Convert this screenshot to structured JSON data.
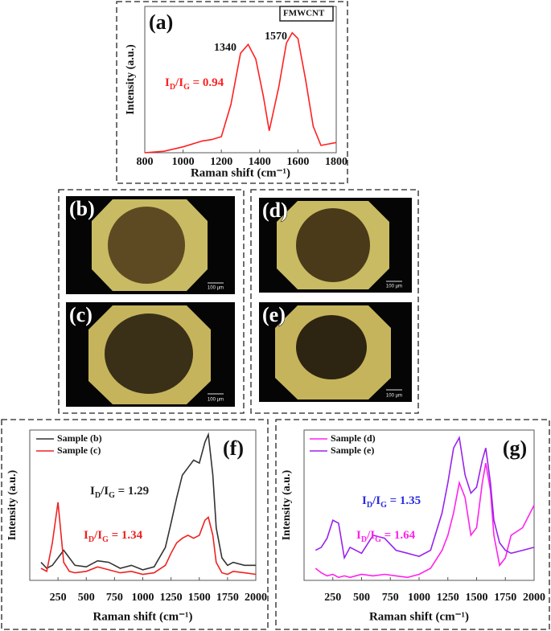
{
  "chart_data": [
    {
      "type": "line",
      "panel_label": "(a)",
      "x_label": "Raman shift (cm⁻¹)",
      "y_label": "Intensity (a.u.)",
      "x": [
        800,
        900,
        1000,
        1100,
        1150,
        1200,
        1250,
        1300,
        1340,
        1380,
        1420,
        1450,
        1500,
        1540,
        1570,
        1600,
        1640,
        1680,
        1720,
        1760,
        1800
      ],
      "series": [
        {
          "name": "FMWCNT",
          "color": "#ff2020",
          "values": [
            0,
            1,
            4,
            8,
            9,
            11,
            33,
            68,
            74,
            64,
            38,
            15,
            45,
            75,
            82,
            78,
            50,
            18,
            5,
            6,
            7
          ]
        }
      ],
      "xlim": [
        800,
        1800
      ],
      "xticks": [
        800,
        1000,
        1200,
        1400,
        1600,
        1800
      ],
      "ylim": [
        0,
        100
      ],
      "peak_labels": [
        1340,
        1570
      ],
      "ratio_labels": [
        {
          "parts": [
            "I",
            "D",
            "/I",
            "G",
            " = 0.94"
          ],
          "color": "#ff2020"
        }
      ]
    },
    {
      "type": "line",
      "panel_label": "(f)",
      "x_label": "Raman shift (cm⁻¹)",
      "y_label": "Intensity (a.u.)",
      "x": [
        100,
        150,
        200,
        250,
        300,
        350,
        400,
        500,
        600,
        700,
        800,
        900,
        1000,
        1100,
        1200,
        1250,
        1300,
        1350,
        1400,
        1450,
        1500,
        1550,
        1580,
        1620,
        1650,
        1700,
        1750,
        1800,
        1900,
        2000
      ],
      "series": [
        {
          "name": "Sample (b)",
          "color": "#333333",
          "values": [
            12,
            8,
            10,
            15,
            20,
            15,
            10,
            9,
            13,
            12,
            8,
            10,
            7,
            9,
            22,
            38,
            55,
            70,
            75,
            80,
            78,
            92,
            97,
            70,
            35,
            15,
            10,
            12,
            10,
            10
          ]
        },
        {
          "name": "Sample (c)",
          "color": "#ee2222",
          "values": [
            8,
            6,
            25,
            52,
            12,
            6,
            5,
            6,
            9,
            7,
            5,
            6,
            4,
            5,
            10,
            18,
            25,
            28,
            30,
            28,
            30,
            40,
            42,
            30,
            12,
            5,
            4,
            6,
            5,
            4
          ]
        }
      ],
      "xlim": [
        0,
        2000
      ],
      "xticks": [
        250,
        500,
        750,
        1000,
        1250,
        1500,
        1750,
        2000
      ],
      "ylim": [
        0,
        100
      ],
      "ratio_labels": [
        {
          "parts": [
            "I",
            "D",
            "/I",
            "G",
            " = 1.29"
          ],
          "color": "#222222"
        },
        {
          "parts": [
            "I",
            "D",
            "/I",
            "G",
            " = 1.34"
          ],
          "color": "#ee2222"
        }
      ]
    },
    {
      "type": "line",
      "panel_label": "(g)",
      "x_label": "Raman shift (cm⁻¹)",
      "y_label": "Intensity (a.u.)",
      "x": [
        100,
        150,
        200,
        250,
        300,
        350,
        400,
        500,
        600,
        700,
        800,
        900,
        1000,
        1100,
        1200,
        1250,
        1300,
        1350,
        1400,
        1450,
        1500,
        1550,
        1580,
        1620,
        1650,
        1700,
        1750,
        1800,
        1900,
        2000
      ],
      "series": [
        {
          "name": "Sample (d)",
          "color": "#ff22ee",
          "values": [
            8,
            5,
            3,
            4,
            2,
            3,
            2,
            4,
            3,
            4,
            3,
            2,
            4,
            8,
            20,
            30,
            45,
            65,
            55,
            30,
            35,
            65,
            78,
            60,
            30,
            10,
            15,
            30,
            35,
            50
          ]
        },
        {
          "name": "Sample (e)",
          "color": "#9922ee",
          "values": [
            20,
            22,
            28,
            40,
            38,
            15,
            22,
            18,
            30,
            28,
            20,
            18,
            16,
            20,
            45,
            65,
            88,
            95,
            70,
            58,
            62,
            80,
            88,
            65,
            40,
            25,
            20,
            18,
            20,
            22
          ]
        }
      ],
      "xlim": [
        0,
        2000
      ],
      "xticks": [
        250,
        500,
        750,
        1000,
        1250,
        1500,
        1750,
        2000
      ],
      "ylim": [
        0,
        100
      ],
      "ratio_labels": [
        {
          "parts": [
            "I",
            "D",
            "/I",
            "G",
            " = 1.35"
          ],
          "color": "#2a2ae0"
        },
        {
          "parts": [
            "I",
            "D",
            "/I",
            "G",
            " = 1.64"
          ],
          "color": "#ff22ee"
        }
      ]
    }
  ],
  "micrographs": [
    {
      "label": "(b)",
      "scale": "100 µm"
    },
    {
      "label": "(c)",
      "scale": "100 µm"
    },
    {
      "label": "(d)",
      "scale": "100 µm"
    },
    {
      "label": "(e)",
      "scale": "100 µm"
    }
  ]
}
